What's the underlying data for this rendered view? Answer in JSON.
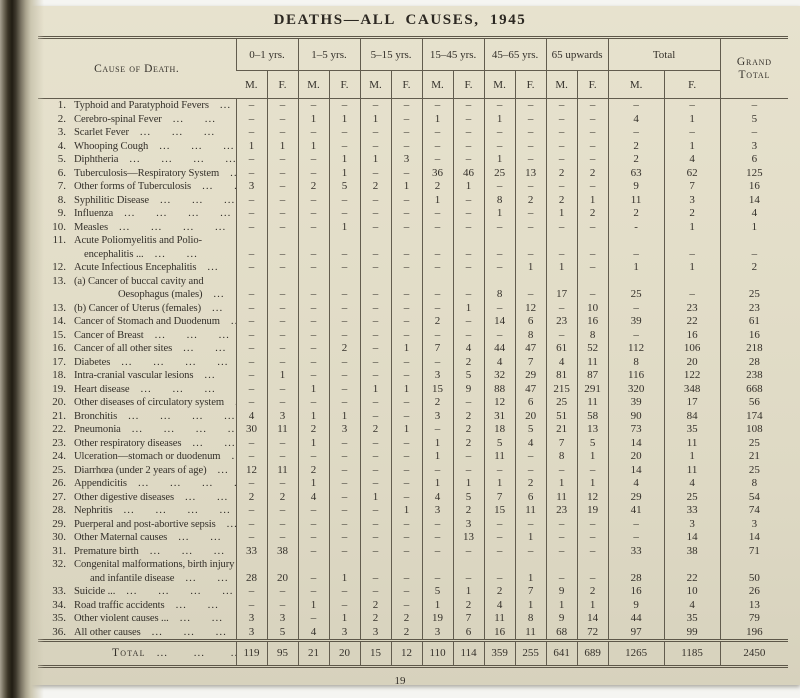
{
  "title": "DEATHS—ALL CAUSES, 1945",
  "page_number": "19",
  "table": {
    "cause_header": "Cause of Death.",
    "age_groups": [
      "0–1 yrs.",
      "1–5 yrs.",
      "5–15 yrs.",
      "15–45 yrs.",
      "45–65 yrs.",
      "65 upwards"
    ],
    "total_header": "Total",
    "grand_total_lines": [
      "Grand",
      "Total"
    ],
    "sex_labels": [
      "M.",
      "F."
    ],
    "rows": [
      {
        "no": "1.",
        "label": "Typhoid and Paratyphoid Fevers",
        "dots": "...",
        "values": [
          "–",
          "–",
          "–",
          "–",
          "–",
          "–",
          "–",
          "–",
          "–",
          "–",
          "–",
          "–",
          "–",
          "–",
          "–"
        ]
      },
      {
        "no": "2.",
        "label": "Cerebro-spinal Fever",
        "dots": "... ... ...",
        "values": [
          "–",
          "–",
          "1",
          "1",
          "1",
          "–",
          "1",
          "–",
          "1",
          "–",
          "–",
          "–",
          "4",
          "1",
          "5"
        ]
      },
      {
        "no": "3.",
        "label": "Scarlet Fever",
        "dots": "... ... ... ...",
        "values": [
          "–",
          "–",
          "–",
          "–",
          "–",
          "–",
          "–",
          "–",
          "–",
          "–",
          "–",
          "–",
          "–",
          "–",
          "–"
        ]
      },
      {
        "no": "4.",
        "label": "Whooping Cough",
        "dots": "... ... ...",
        "values": [
          "1",
          "1",
          "1",
          "–",
          "–",
          "–",
          "–",
          "–",
          "–",
          "–",
          "–",
          "–",
          "2",
          "1",
          "3"
        ]
      },
      {
        "no": "5.",
        "label": "Diphtheria",
        "dots": "... ... ... ...",
        "values": [
          "–",
          "–",
          "–",
          "1",
          "1",
          "3",
          "–",
          "–",
          "1",
          "–",
          "–",
          "–",
          "2",
          "4",
          "6"
        ]
      },
      {
        "no": "6.",
        "label": "Tuberculosis—Respiratory System",
        "dots": "...",
        "values": [
          "–",
          "–",
          "–",
          "1",
          "–",
          "–",
          "36",
          "46",
          "25",
          "13",
          "2",
          "2",
          "63",
          "62",
          "125"
        ]
      },
      {
        "no": "7.",
        "label": "Other forms of Tuberculosis",
        "dots": "... ...",
        "values": [
          "3",
          "–",
          "2",
          "5",
          "2",
          "1",
          "2",
          "1",
          "–",
          "–",
          "–",
          "–",
          "9",
          "7",
          "16"
        ]
      },
      {
        "no": "8.",
        "label": "Syphilitic Disease",
        "dots": "... ... ...",
        "values": [
          "–",
          "–",
          "–",
          "–",
          "–",
          "–",
          "1",
          "–",
          "8",
          "2",
          "2",
          "1",
          "11",
          "3",
          "14"
        ]
      },
      {
        "no": "9.",
        "label": "Influenza",
        "dots": "... ... ... ...",
        "values": [
          "–",
          "–",
          "–",
          "–",
          "–",
          "–",
          "–",
          "–",
          "1",
          "–",
          "1",
          "2",
          "2",
          "2",
          "4"
        ]
      },
      {
        "no": "10.",
        "label": "Measles",
        "dots": "... ... ... ...",
        "values": [
          "–",
          "–",
          "–",
          "1",
          "–",
          "–",
          "–",
          "–",
          "–",
          "–",
          "–",
          "–",
          "-",
          "1",
          "1"
        ]
      },
      {
        "no": "11.",
        "label": "Acute Poliomyelitis and Polio-",
        "label2": "encephalitis ...",
        "dots": "... ...",
        "values": [
          "–",
          "–",
          "–",
          "–",
          "–",
          "–",
          "–",
          "–",
          "–",
          "–",
          "–",
          "–",
          "–",
          "–",
          "–"
        ]
      },
      {
        "no": "12.",
        "label": "Acute Infectious Encephalitis",
        "dots": "...",
        "values": [
          "–",
          "–",
          "–",
          "–",
          "–",
          "–",
          "–",
          "–",
          "–",
          "1",
          "1",
          "–",
          "1",
          "1",
          "2"
        ]
      },
      {
        "no": "13.",
        "label": "(a) Cancer of buccal cavity and",
        "label2": "Oesophagus (males)",
        "dots": "... ...",
        "values": [
          "–",
          "–",
          "–",
          "–",
          "–",
          "–",
          "–",
          "–",
          "8",
          "–",
          "17",
          "–",
          "25",
          "–",
          "25"
        ]
      },
      {
        "no": "13.",
        "label": "(b) Cancer of Uterus (females)",
        "dots": "...",
        "values": [
          "–",
          "–",
          "–",
          "–",
          "–",
          "–",
          "–",
          "1",
          "–",
          "12",
          "–",
          "10",
          "–",
          "23",
          "23"
        ]
      },
      {
        "no": "14.",
        "label": "Cancer of Stomach and Duodenum",
        "dots": "...",
        "values": [
          "–",
          "–",
          "–",
          "–",
          "–",
          "–",
          "2",
          "–",
          "14",
          "6",
          "23",
          "16",
          "39",
          "22",
          "61"
        ]
      },
      {
        "no": "15.",
        "label": "Cancer of Breast",
        "dots": "... ... ...",
        "values": [
          "–",
          "–",
          "–",
          "–",
          "–",
          "–",
          "–",
          "–",
          "–",
          "8",
          "–",
          "8",
          "–",
          "16",
          "16"
        ]
      },
      {
        "no": "16.",
        "label": "Cancer of all other sites",
        "dots": "... ...",
        "values": [
          "–",
          "–",
          "–",
          "2",
          "–",
          "1",
          "7",
          "4",
          "44",
          "47",
          "61",
          "52",
          "112",
          "106",
          "218"
        ]
      },
      {
        "no": "17.",
        "label": "Diabetes",
        "dots": "... ... ... ...",
        "values": [
          "–",
          "–",
          "–",
          "–",
          "–",
          "–",
          "–",
          "2",
          "4",
          "7",
          "4",
          "11",
          "8",
          "20",
          "28"
        ]
      },
      {
        "no": "18.",
        "label": "Intra-cranial vascular lesions",
        "dots": "...",
        "values": [
          "–",
          "1",
          "–",
          "–",
          "–",
          "–",
          "3",
          "5",
          "32",
          "29",
          "81",
          "87",
          "116",
          "122",
          "238"
        ]
      },
      {
        "no": "19.",
        "label": "Heart disease",
        "dots": "... ... ... ...",
        "values": [
          "–",
          "–",
          "1",
          "–",
          "1",
          "1",
          "15",
          "9",
          "88",
          "47",
          "215",
          "291",
          "320",
          "348",
          "668"
        ]
      },
      {
        "no": "20.",
        "label": "Other diseases of circulatory system",
        "dots": "...",
        "values": [
          "–",
          "–",
          "–",
          "–",
          "–",
          "–",
          "2",
          "–",
          "12",
          "6",
          "25",
          "11",
          "39",
          "17",
          "56"
        ]
      },
      {
        "no": "21.",
        "label": "Bronchitis",
        "dots": "... ... ... ...",
        "values": [
          "4",
          "3",
          "1",
          "1",
          "–",
          "–",
          "3",
          "2",
          "31",
          "20",
          "51",
          "58",
          "90",
          "84",
          "174"
        ]
      },
      {
        "no": "22.",
        "label": "Pneumonia",
        "dots": "... ... ... ...",
        "values": [
          "30",
          "11",
          "2",
          "3",
          "2",
          "1",
          "–",
          "2",
          "18",
          "5",
          "21",
          "13",
          "73",
          "35",
          "108"
        ]
      },
      {
        "no": "23.",
        "label": "Other respiratory diseases",
        "dots": "... ...",
        "values": [
          "–",
          "–",
          "1",
          "–",
          "–",
          "–",
          "1",
          "2",
          "5",
          "4",
          "7",
          "5",
          "14",
          "11",
          "25"
        ]
      },
      {
        "no": "24.",
        "label": "Ulceration—stomach or duodenum",
        "dots": "...",
        "values": [
          "–",
          "–",
          "–",
          "–",
          "–",
          "–",
          "1",
          "–",
          "11",
          "–",
          "8",
          "1",
          "20",
          "1",
          "21"
        ]
      },
      {
        "no": "25.",
        "label": "Diarrhœa (under 2 years of age)",
        "dots": "...",
        "values": [
          "12",
          "11",
          "2",
          "–",
          "–",
          "–",
          "–",
          "–",
          "–",
          "–",
          "–",
          "–",
          "14",
          "11",
          "25"
        ]
      },
      {
        "no": "26.",
        "label": "Appendicitis",
        "dots": "... ... ... ...",
        "values": [
          "–",
          "–",
          "1",
          "–",
          "–",
          "–",
          "1",
          "1",
          "1",
          "2",
          "1",
          "1",
          "4",
          "4",
          "8"
        ]
      },
      {
        "no": "27.",
        "label": "Other digestive diseases",
        "dots": "... ...",
        "values": [
          "2",
          "2",
          "4",
          "–",
          "1",
          "–",
          "4",
          "5",
          "7",
          "6",
          "11",
          "12",
          "29",
          "25",
          "54"
        ]
      },
      {
        "no": "28.",
        "label": "Nephritis",
        "dots": "... ... ... ...",
        "values": [
          "–",
          "–",
          "–",
          "–",
          "–",
          "1",
          "3",
          "2",
          "15",
          "11",
          "23",
          "19",
          "41",
          "33",
          "74"
        ]
      },
      {
        "no": "29.",
        "label": "Puerperal and post-abortive sepsis",
        "dots": "...",
        "values": [
          "–",
          "–",
          "–",
          "–",
          "–",
          "–",
          "–",
          "3",
          "–",
          "–",
          "–",
          "–",
          "–",
          "3",
          "3"
        ]
      },
      {
        "no": "30.",
        "label": "Other Maternal causes",
        "dots": "... ...",
        "values": [
          "–",
          "–",
          "–",
          "–",
          "–",
          "–",
          "–",
          "13",
          "–",
          "1",
          "–",
          "–",
          "–",
          "14",
          "14"
        ]
      },
      {
        "no": "31.",
        "label": "Premature birth",
        "dots": "... ... ...",
        "values": [
          "33",
          "38",
          "–",
          "–",
          "–",
          "–",
          "–",
          "–",
          "–",
          "–",
          "–",
          "–",
          "33",
          "38",
          "71"
        ]
      },
      {
        "no": "32.",
        "label": "Congenital malformations, birth injury",
        "label2": "and infantile disease",
        "dots": "... ...",
        "values": [
          "28",
          "20",
          "–",
          "1",
          "–",
          "–",
          "–",
          "–",
          "–",
          "1",
          "–",
          "–",
          "28",
          "22",
          "50"
        ]
      },
      {
        "no": "33.",
        "label": "Suicide ...",
        "dots": "... ... ... ...",
        "values": [
          "–",
          "–",
          "–",
          "–",
          "–",
          "–",
          "5",
          "1",
          "2",
          "7",
          "9",
          "2",
          "16",
          "10",
          "26"
        ]
      },
      {
        "no": "34.",
        "label": "Road traffic accidents",
        "dots": "... ...",
        "values": [
          "–",
          "–",
          "1",
          "–",
          "2",
          "–",
          "1",
          "2",
          "4",
          "1",
          "1",
          "1",
          "9",
          "4",
          "13"
        ]
      },
      {
        "no": "35.",
        "label": "Other violent causes ...",
        "dots": "... ...",
        "values": [
          "3",
          "3",
          "–",
          "1",
          "2",
          "2",
          "19",
          "7",
          "11",
          "8",
          "9",
          "14",
          "44",
          "35",
          "79"
        ]
      },
      {
        "no": "36.",
        "label": "All other causes",
        "dots": "... ... ...",
        "values": [
          "3",
          "5",
          "4",
          "3",
          "3",
          "2",
          "3",
          "6",
          "16",
          "11",
          "68",
          "72",
          "97",
          "99",
          "196"
        ]
      }
    ],
    "total_row": {
      "label": "Total",
      "dots": "... ... ...",
      "values": [
        "119",
        "95",
        "21",
        "20",
        "15",
        "12",
        "110",
        "114",
        "359",
        "255",
        "641",
        "689",
        "1265",
        "1185",
        "2450"
      ]
    }
  }
}
